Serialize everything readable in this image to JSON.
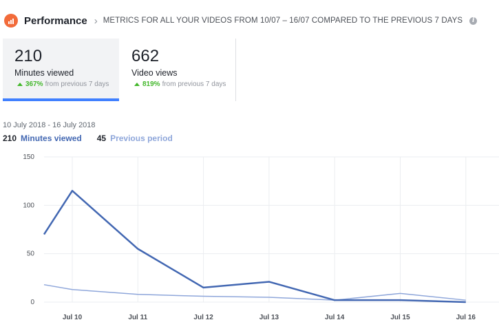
{
  "header": {
    "title": "Performance",
    "subtitle": "METRICS FOR ALL YOUR VIDEOS FROM 10/07 – 16/07 COMPARED TO THE PREVIOUS 7 DAYS"
  },
  "metrics": [
    {
      "value": "210",
      "label": "Minutes viewed",
      "change": "367%",
      "change_text": "from previous 7 days",
      "selected": true
    },
    {
      "value": "662",
      "label": "Video views",
      "change": "819%",
      "change_text": "from previous 7 days",
      "selected": false
    }
  ],
  "date_range": "10 July 2018 - 16 July 2018",
  "legend": {
    "current_value": "210",
    "current_label": "Minutes viewed",
    "previous_value": "45",
    "previous_label": "Previous period"
  },
  "colors": {
    "current": "#4267b2",
    "previous": "#8ea6da",
    "accent": "#4080ff",
    "positive": "#42b72a",
    "icon": "#f26b3a"
  },
  "chart_data": {
    "type": "line",
    "x": [
      "Jul 10",
      "Jul 11",
      "Jul 12",
      "Jul 13",
      "Jul 14",
      "Jul 15",
      "Jul 16"
    ],
    "y_ticks": [
      0,
      50,
      100,
      150
    ],
    "ylim": [
      0,
      150
    ],
    "grid": true,
    "series": [
      {
        "name": "Minutes viewed",
        "values_start": 70,
        "values": [
          115,
          55,
          15,
          21,
          2,
          2,
          0
        ]
      },
      {
        "name": "Previous period",
        "values_start": 18,
        "values": [
          13,
          8,
          6,
          5,
          2,
          9,
          2
        ]
      }
    ]
  }
}
